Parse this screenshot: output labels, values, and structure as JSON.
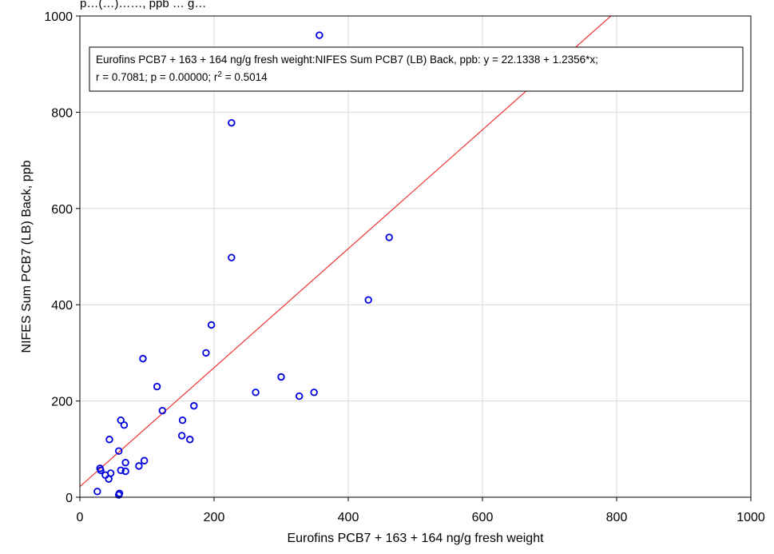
{
  "colors": {
    "point": "#0000e0",
    "fit_line": "#ee3333",
    "grid": "#d9d9d9",
    "frame": "#000000"
  },
  "header": {
    "clipped_text": "p…(…)……, ppb … g…"
  },
  "annotation": {
    "line1": "Eurofins PCB7 + 163 + 164 ng/g fresh weight:NIFES Sum PCB7 (LB) Back, ppb:   y = 22.1338 + 1.2356*x;",
    "line2_prefix": "r = 0.7081; p = 0.00000; r",
    "line2_sup": "2",
    "line2_suffix": " = 0.5014"
  },
  "chart_data": {
    "type": "scatter",
    "xlabel": "Eurofins PCB7 + 163 + 164 ng/g fresh weight",
    "ylabel": "NIFES Sum PCB7 (LB) Back, ppb",
    "xlim": [
      0,
      1000
    ],
    "ylim": [
      0,
      1000
    ],
    "x_ticks": [
      0,
      200,
      400,
      600,
      800,
      1000
    ],
    "y_ticks": [
      0,
      200,
      400,
      600,
      800,
      1000
    ],
    "grid": true,
    "fit": {
      "intercept": 22.1338,
      "slope": 1.2356
    },
    "points": [
      {
        "x": 357,
        "y": 960
      },
      {
        "x": 226,
        "y": 778
      },
      {
        "x": 461,
        "y": 540
      },
      {
        "x": 226,
        "y": 498
      },
      {
        "x": 430,
        "y": 410
      },
      {
        "x": 196,
        "y": 358
      },
      {
        "x": 188,
        "y": 300
      },
      {
        "x": 94,
        "y": 288
      },
      {
        "x": 300,
        "y": 250
      },
      {
        "x": 115,
        "y": 230
      },
      {
        "x": 262,
        "y": 218
      },
      {
        "x": 349,
        "y": 218
      },
      {
        "x": 327,
        "y": 210
      },
      {
        "x": 170,
        "y": 190
      },
      {
        "x": 123,
        "y": 180
      },
      {
        "x": 61,
        "y": 160
      },
      {
        "x": 153,
        "y": 160
      },
      {
        "x": 66,
        "y": 150
      },
      {
        "x": 152,
        "y": 128
      },
      {
        "x": 164,
        "y": 120
      },
      {
        "x": 44,
        "y": 120
      },
      {
        "x": 58,
        "y": 96
      },
      {
        "x": 96,
        "y": 76
      },
      {
        "x": 68,
        "y": 72
      },
      {
        "x": 88,
        "y": 65
      },
      {
        "x": 30,
        "y": 60
      },
      {
        "x": 31,
        "y": 56
      },
      {
        "x": 61,
        "y": 56
      },
      {
        "x": 68,
        "y": 54
      },
      {
        "x": 46,
        "y": 50
      },
      {
        "x": 38,
        "y": 46
      },
      {
        "x": 43,
        "y": 38
      },
      {
        "x": 26,
        "y": 12
      },
      {
        "x": 59,
        "y": 8
      },
      {
        "x": 58,
        "y": 5
      }
    ]
  }
}
